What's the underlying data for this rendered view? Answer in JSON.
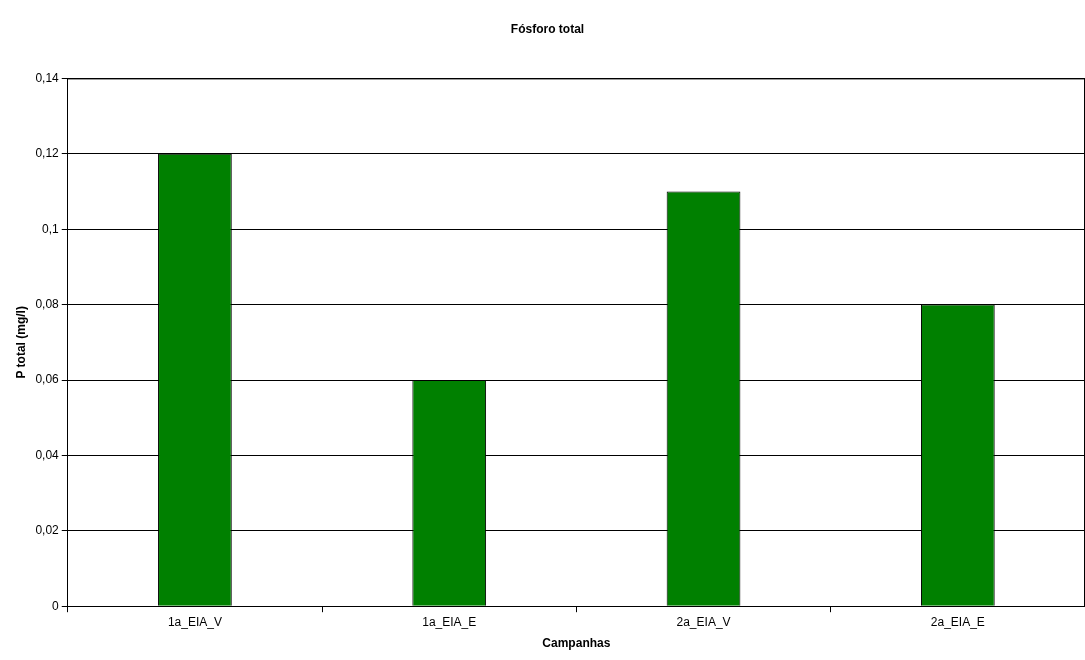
{
  "chart_data": {
    "type": "bar",
    "title": "Fósforo total",
    "xlabel": "Campanhas",
    "ylabel": "P total (mg/l)",
    "categories": [
      "1a_EIA_V",
      "1a_EIA_E",
      "2a_EIA_V",
      "2a_EIA_E"
    ],
    "values": [
      0.12,
      0.06,
      0.11,
      0.08
    ],
    "color": "#008000",
    "ylim": [
      0,
      0.14
    ],
    "yticks": [
      0,
      {
        "value": 0.02,
        "label": "0,02"
      },
      {
        "value": 0.04,
        "label": "0,04"
      },
      {
        "value": 0.06,
        "label": "0,06"
      },
      {
        "value": 0.08,
        "label": "0,08"
      },
      {
        "value": 0.1,
        "label": "0,1"
      },
      {
        "value": 0.12,
        "label": "0,12"
      },
      {
        "value": 0.14,
        "label": "0,14"
      }
    ],
    "grid": "y",
    "legend": false
  }
}
